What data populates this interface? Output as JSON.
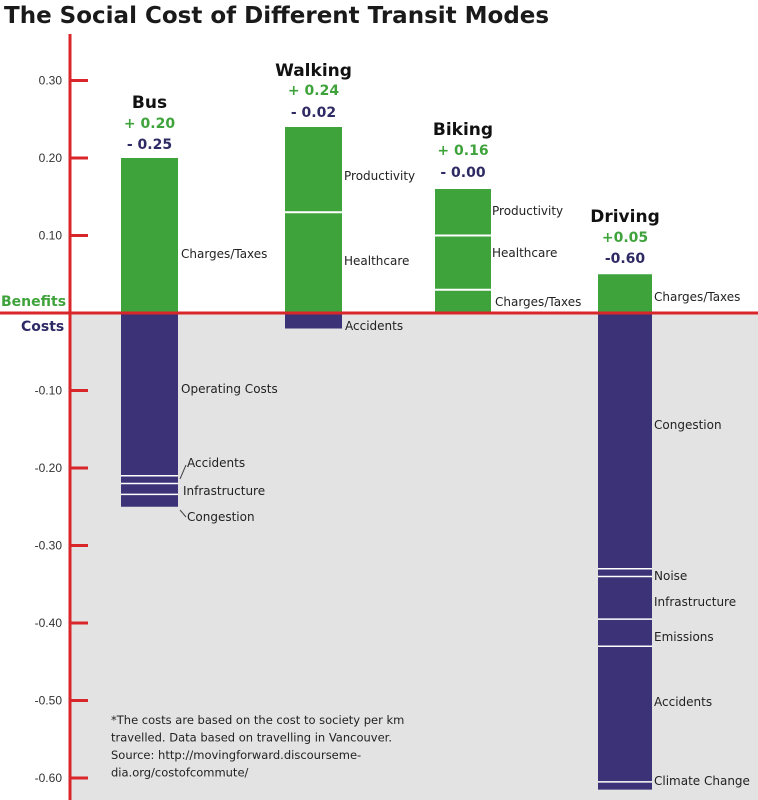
{
  "colors": {
    "benefit": "#3fa33b",
    "cost": "#3b3277",
    "axis": "#d8262a",
    "cost_background": "#e3e3e3",
    "benefit_text": "#3fa33b",
    "cost_text": "#2e2a63"
  },
  "axis_words": {
    "benefits": "Benefits",
    "costs": "Costs"
  },
  "footnote": [
    "*The costs are based on the cost to society per km",
    "travelled. Data based on travelling in Vancouver.",
    "Source: http://movingforward.discourseme-",
    "dia.org/costofcommute/"
  ],
  "chart_data": {
    "type": "bar",
    "title": "The Social Cost of Different Transit Modes",
    "ylim": [
      -0.62,
      0.34
    ],
    "y_ticks": [
      0.3,
      0.2,
      0.1,
      -0.1,
      -0.2,
      -0.3,
      -0.4,
      -0.5,
      -0.6
    ],
    "y_tick_labels": [
      "0.30",
      "0.20",
      "0.10",
      "-0.10",
      "-0.20",
      "-0.30",
      "-0.40",
      "-0.50",
      "-0.60"
    ],
    "grid": false,
    "categories": [
      "Bus",
      "Walking",
      "Biking",
      "Driving"
    ],
    "modes": [
      {
        "name": "Bus",
        "benefit_label": "+ 0.20",
        "cost_label": "- 0.25",
        "benefits": [
          {
            "name": "Charges/Taxes",
            "value": 0.2
          }
        ],
        "costs": [
          {
            "name": "Operating Costs",
            "value": 0.21
          },
          {
            "name": "Accidents",
            "value": 0.01
          },
          {
            "name": "Infrastructure",
            "value": 0.014
          },
          {
            "name": "Congestion",
            "value": 0.016
          }
        ]
      },
      {
        "name": "Walking",
        "benefit_label": "+ 0.24",
        "cost_label": "- 0.02",
        "benefits": [
          {
            "name": "Healthcare",
            "value": 0.13
          },
          {
            "name": "Productivity",
            "value": 0.11
          }
        ],
        "costs": [
          {
            "name": "Accidents",
            "value": 0.02
          }
        ]
      },
      {
        "name": "Biking",
        "benefit_label": "+ 0.16",
        "cost_label": "- 0.00",
        "benefits": [
          {
            "name": "Charges/Taxes",
            "value": 0.03
          },
          {
            "name": "Healthcare",
            "value": 0.07
          },
          {
            "name": "Productivity",
            "value": 0.06
          }
        ],
        "costs": []
      },
      {
        "name": "Driving",
        "benefit_label": "+0.05",
        "cost_label": "-0.60",
        "benefits": [
          {
            "name": "Charges/Taxes",
            "value": 0.05
          }
        ],
        "costs": [
          {
            "name": "Congestion",
            "value": 0.33
          },
          {
            "name": "Noise",
            "value": 0.01
          },
          {
            "name": "Infrastructure",
            "value": 0.055
          },
          {
            "name": "Emissions",
            "value": 0.035
          },
          {
            "name": "Accidents",
            "value": 0.175
          },
          {
            "name": "Climate Change",
            "value": 0.01
          }
        ]
      }
    ]
  }
}
